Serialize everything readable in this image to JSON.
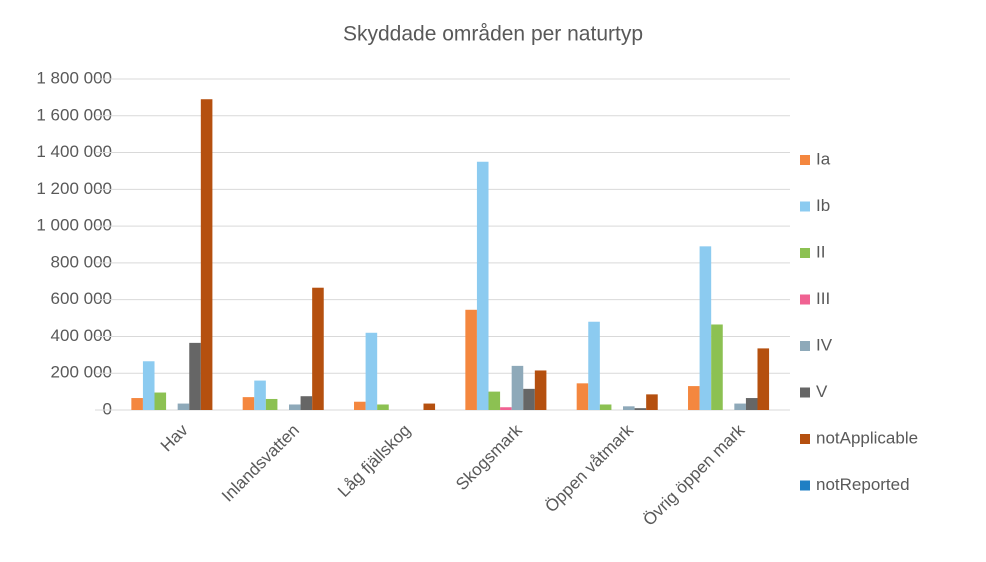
{
  "chart_data": {
    "type": "bar",
    "title": "Skyddade områden per naturtyp",
    "categories": [
      "Hav",
      "Inlandsvatten",
      "Låg fjällskog",
      "Skogsmark",
      "Öppen våtmark",
      "Övrig öppen mark"
    ],
    "series": [
      {
        "name": "Ia",
        "color": "#f4873f",
        "values": [
          65000,
          70000,
          45000,
          545000,
          145000,
          130000
        ]
      },
      {
        "name": "Ib",
        "color": "#8ccbf0",
        "values": [
          265000,
          160000,
          420000,
          1350000,
          480000,
          890000
        ]
      },
      {
        "name": "II",
        "color": "#8cc152",
        "values": [
          95000,
          60000,
          30000,
          100000,
          30000,
          465000
        ]
      },
      {
        "name": "III",
        "color": "#f06292",
        "values": [
          0,
          0,
          0,
          15000,
          0,
          0
        ]
      },
      {
        "name": "IV",
        "color": "#8ea9b9",
        "values": [
          35000,
          30000,
          0,
          240000,
          20000,
          35000
        ]
      },
      {
        "name": "V",
        "color": "#666666",
        "values": [
          365000,
          75000,
          0,
          115000,
          10000,
          65000
        ]
      },
      {
        "name": "notApplicable",
        "color": "#b5500f",
        "values": [
          1690000,
          665000,
          35000,
          215000,
          85000,
          335000
        ]
      },
      {
        "name": "notReported",
        "color": "#1f7fc4",
        "values": [
          0,
          0,
          0,
          0,
          0,
          0
        ]
      }
    ],
    "ylim": [
      0,
      1800000
    ],
    "yticks": [
      0,
      {
        "value": 200000,
        "label": "200 000"
      },
      {
        "value": 400000,
        "label": "400 000"
      },
      {
        "value": 600000,
        "label": "600 000"
      },
      {
        "value": 800000,
        "label": "800 000"
      },
      {
        "value": 1000000,
        "label": "1 000 000"
      },
      {
        "value": 1200000,
        "label": "1 200 000"
      },
      {
        "value": 1400000,
        "label": "1 400 000"
      },
      {
        "value": 1600000,
        "label": "1 600 000"
      },
      {
        "value": 1800000,
        "label": "1 800 000"
      }
    ],
    "grid": true,
    "legend": "right"
  }
}
